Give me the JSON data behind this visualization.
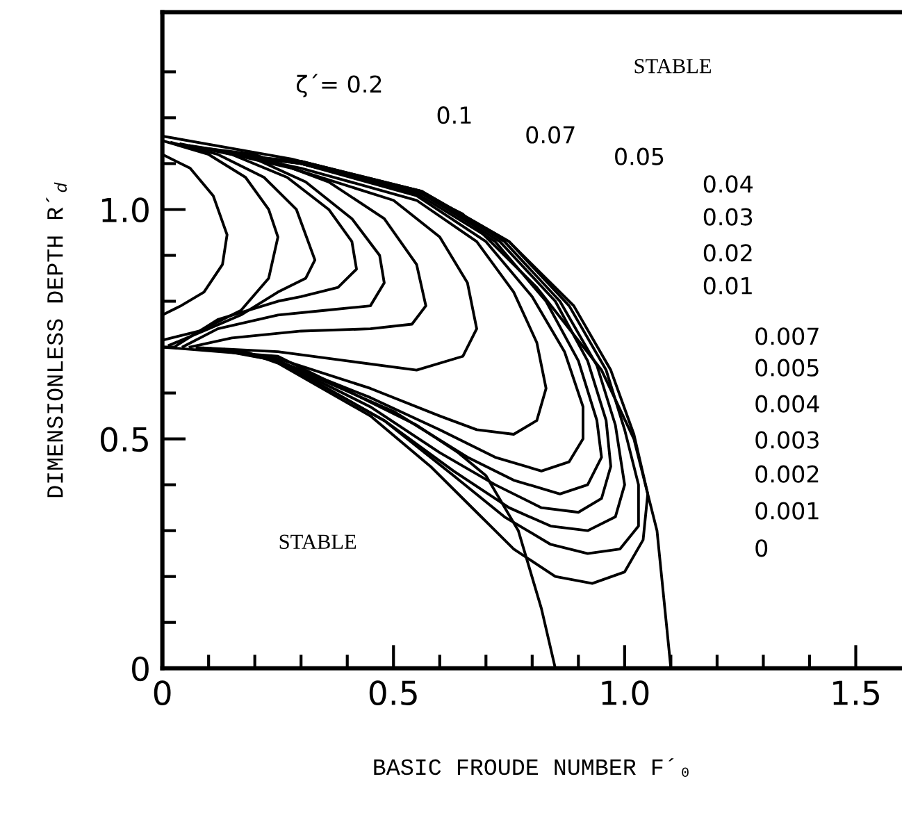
{
  "chart_data": {
    "type": "line",
    "xlabel": "BASIC FROUDE NUMBER F´₀",
    "ylabel": "DIMENSIONLESS DEPTH R´$_{d}$",
    "xlim": [
      0,
      1.6
    ],
    "ylim": [
      0,
      1.43
    ],
    "xticks": [
      0,
      {
        "value": 0.1,
        "label": null
      },
      {
        "value": 0.2,
        "label": null
      },
      {
        "value": 0.3,
        "label": null
      },
      {
        "value": 0.4,
        "label": null
      },
      0.5,
      {
        "value": 0.6,
        "label": null
      },
      {
        "value": 0.7,
        "label": null
      },
      {
        "value": 0.8,
        "label": null
      },
      {
        "value": 0.9,
        "label": null
      },
      {
        "value": 1.0,
        "label": "1.0"
      },
      {
        "value": 1.1,
        "label": null
      },
      {
        "value": 1.2,
        "label": null
      },
      {
        "value": 1.3,
        "label": null
      },
      {
        "value": 1.4,
        "label": null
      },
      1.5
    ],
    "yticks": [
      0,
      {
        "value": 0.1,
        "label": null
      },
      {
        "value": 0.2,
        "label": null
      },
      {
        "value": 0.3,
        "label": null
      },
      {
        "value": 0.4,
        "label": null
      },
      0.5,
      {
        "value": 0.6,
        "label": null
      },
      {
        "value": 0.7,
        "label": null
      },
      {
        "value": 0.8,
        "label": null
      },
      {
        "value": 0.9,
        "label": null
      },
      {
        "value": 1.0,
        "label": "1.0"
      },
      {
        "value": 1.1,
        "label": null
      },
      {
        "value": 1.2,
        "label": null
      },
      {
        "value": 1.3,
        "label": null
      }
    ],
    "grid": false,
    "marker": "none",
    "line_style": "solid",
    "series": [
      {
        "color": "#000000",
        "x": [
          0,
          0.28,
          0.55,
          0.65,
          0.81,
          0.95,
          1.02,
          1.07,
          1.1
        ],
        "values": [
          1.16,
          1.11,
          1.04,
          0.99,
          0.83,
          0.65,
          0.5,
          0.3,
          0
        ]
      },
      {
        "color": "#000000",
        "x": [
          0,
          0.25,
          0.45,
          0.55,
          0.64,
          0.7,
          0.77,
          0.82,
          0.85
        ],
        "values": [
          0.7,
          0.68,
          0.58,
          0.53,
          0.47,
          0.42,
          0.3,
          0.13,
          0
        ]
      },
      {
        "color": "#000000",
        "x": [
          0,
          0.06,
          0.11,
          0.14,
          0.13,
          0.09,
          0.04,
          0
        ],
        "values": [
          1.12,
          1.09,
          1.03,
          0.945,
          0.88,
          0.82,
          0.79,
          0.77
        ]
      },
      {
        "color": "#000000",
        "x": [
          0,
          0.1,
          0.18,
          0.23,
          0.25,
          0.23,
          0.17,
          0.08,
          0
        ],
        "values": [
          1.15,
          1.12,
          1.07,
          1.0,
          0.94,
          0.85,
          0.78,
          0.735,
          0.715
        ]
      },
      {
        "color": "#000000",
        "x": [
          0.02,
          0.12,
          0.22,
          0.29,
          0.33,
          0.31,
          0.25,
          0.17,
          0.1,
          0.015
        ],
        "values": [
          1.146,
          1.12,
          1.07,
          1.0,
          0.89,
          0.85,
          0.82,
          0.77,
          0.74,
          0.704
        ]
      },
      {
        "color": "#000000",
        "x": [
          0.04,
          0.15,
          0.27,
          0.36,
          0.41,
          0.42,
          0.38,
          0.3,
          0.25,
          0.12,
          0.03
        ],
        "values": [
          1.143,
          1.12,
          1.07,
          1.0,
          0.93,
          0.87,
          0.83,
          0.81,
          0.8,
          0.76,
          0.703
        ]
      },
      {
        "color": "#000000",
        "x": [
          0.06,
          0.18,
          0.31,
          0.41,
          0.47,
          0.48,
          0.45,
          0.35,
          0.25,
          0.12,
          0.045
        ],
        "values": [
          1.139,
          1.12,
          1.06,
          0.98,
          0.9,
          0.84,
          0.79,
          0.78,
          0.77,
          0.74,
          0.701
        ]
      },
      {
        "color": "#000000",
        "x": [
          0.08,
          0.2,
          0.36,
          0.48,
          0.55,
          0.57,
          0.54,
          0.45,
          0.3,
          0.15,
          0.06
        ],
        "values": [
          1.135,
          1.12,
          1.06,
          0.98,
          0.88,
          0.79,
          0.75,
          0.74,
          0.735,
          0.72,
          0.7
        ]
      },
      {
        "color": "#000000",
        "x": [
          0.1,
          0.28,
          0.5,
          0.6,
          0.66,
          0.68,
          0.65,
          0.55,
          0.4,
          0.25,
          0.075
        ],
        "values": [
          1.132,
          1.09,
          1.02,
          0.94,
          0.84,
          0.74,
          0.68,
          0.65,
          0.67,
          0.69,
          0.699
        ]
      },
      {
        "color": "#000000",
        "x": [
          0.12,
          0.3,
          0.55,
          0.68,
          0.76,
          0.81,
          0.83,
          0.81,
          0.76,
          0.68,
          0.6,
          0.45,
          0.25,
          0.09
        ],
        "values": [
          1.128,
          1.09,
          1.02,
          0.93,
          0.82,
          0.71,
          0.61,
          0.54,
          0.51,
          0.52,
          0.55,
          0.61,
          0.675,
          0.698
        ]
      },
      {
        "color": "#000000",
        "x": [
          0.14,
          0.3,
          0.55,
          0.7,
          0.8,
          0.87,
          0.91,
          0.91,
          0.88,
          0.82,
          0.72,
          0.6,
          0.45,
          0.25,
          0.105
        ],
        "values": [
          1.125,
          1.1,
          1.03,
          0.93,
          0.81,
          0.69,
          0.57,
          0.5,
          0.45,
          0.43,
          0.46,
          0.52,
          0.59,
          0.67,
          0.697
        ]
      },
      {
        "color": "#000000",
        "x": [
          0.16,
          0.3,
          0.55,
          0.72,
          0.83,
          0.9,
          0.94,
          0.95,
          0.92,
          0.86,
          0.76,
          0.66,
          0.5,
          0.25,
          0.12
        ],
        "values": [
          1.121,
          1.1,
          1.035,
          0.93,
          0.8,
          0.67,
          0.54,
          0.46,
          0.4,
          0.38,
          0.41,
          0.46,
          0.56,
          0.67,
          0.696
        ]
      },
      {
        "color": "#000000",
        "x": [
          0.18,
          0.3,
          0.56,
          0.73,
          0.85,
          0.92,
          0.96,
          0.97,
          0.95,
          0.9,
          0.82,
          0.72,
          0.6,
          0.45,
          0.25,
          0.135
        ],
        "values": [
          1.117,
          1.1,
          1.035,
          0.93,
          0.8,
          0.67,
          0.54,
          0.44,
          0.37,
          0.34,
          0.35,
          0.4,
          0.47,
          0.57,
          0.67,
          0.695
        ]
      },
      {
        "color": "#000000",
        "x": [
          0.2,
          0.3,
          0.56,
          0.74,
          0.86,
          0.94,
          0.98,
          1.0,
          0.98,
          0.92,
          0.84,
          0.75,
          0.63,
          0.48,
          0.25,
          0.15
        ],
        "values": [
          1.114,
          1.105,
          1.04,
          0.93,
          0.8,
          0.66,
          0.53,
          0.4,
          0.33,
          0.3,
          0.31,
          0.35,
          0.43,
          0.54,
          0.67,
          0.693
        ]
      },
      {
        "color": "#000000",
        "x": [
          0.22,
          0.3,
          0.56,
          0.75,
          0.88,
          0.96,
          1.0,
          1.03,
          1.03,
          0.99,
          0.92,
          0.84,
          0.74,
          0.63,
          0.48,
          0.25,
          0.165
        ],
        "values": [
          1.11,
          1.105,
          1.04,
          0.93,
          0.79,
          0.65,
          0.52,
          0.4,
          0.31,
          0.26,
          0.25,
          0.27,
          0.33,
          0.42,
          0.54,
          0.67,
          0.692
        ]
      },
      {
        "color": "#000000",
        "x": [
          0.24,
          0.3,
          0.56,
          0.75,
          0.89,
          0.97,
          1.02,
          1.05,
          1.04,
          1.0,
          0.93,
          0.85,
          0.76,
          0.68,
          0.58,
          0.45,
          0.25,
          0.18
        ],
        "values": [
          1.107,
          1.1,
          1.04,
          0.93,
          0.79,
          0.65,
          0.51,
          0.38,
          0.28,
          0.21,
          0.185,
          0.2,
          0.26,
          0.34,
          0.44,
          0.55,
          0.665,
          0.69
        ]
      }
    ],
    "annotations": [
      "STABLE",
      "STABLE",
      "ζ´= 0.2",
      "0.1",
      "0.07",
      "0.05",
      "0.04",
      "0.03",
      "0.02",
      "0.01",
      "0.007",
      "0.005",
      "0.004",
      "0.003",
      "0.002",
      "0.001",
      "0"
    ]
  }
}
